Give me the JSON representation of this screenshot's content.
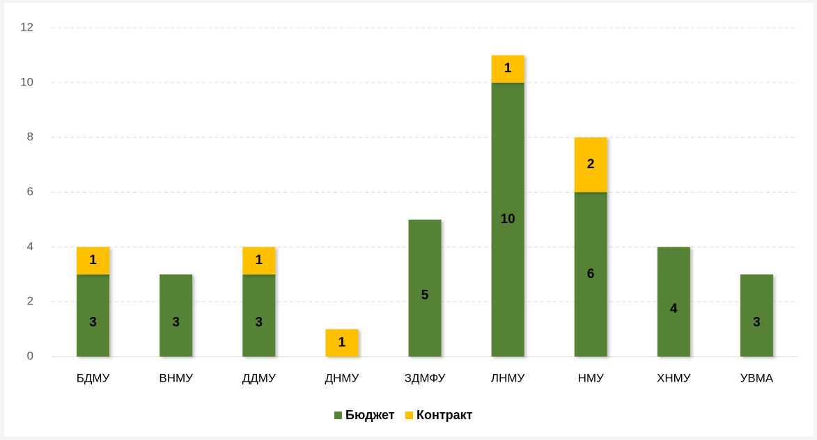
{
  "chart_data": {
    "type": "bar",
    "stacked": true,
    "categories": [
      "БДМУ",
      "ВНМУ",
      "ДДМУ",
      "ДНМУ",
      "ЗДМФУ",
      "ЛНМУ",
      "НМУ",
      "ХНМУ",
      "УВМА"
    ],
    "series": [
      {
        "name": "Бюджет",
        "color": "#548235",
        "values": [
          3,
          3,
          3,
          null,
          5,
          10,
          6,
          4,
          3
        ]
      },
      {
        "name": "Контракт",
        "color": "#ffc000",
        "values": [
          1,
          null,
          1,
          1,
          null,
          1,
          2,
          null,
          null
        ]
      }
    ],
    "ylim": [
      0,
      12
    ],
    "yticks": [
      0,
      2,
      4,
      6,
      8,
      10,
      12
    ],
    "grid": true,
    "legend": "bottom"
  }
}
